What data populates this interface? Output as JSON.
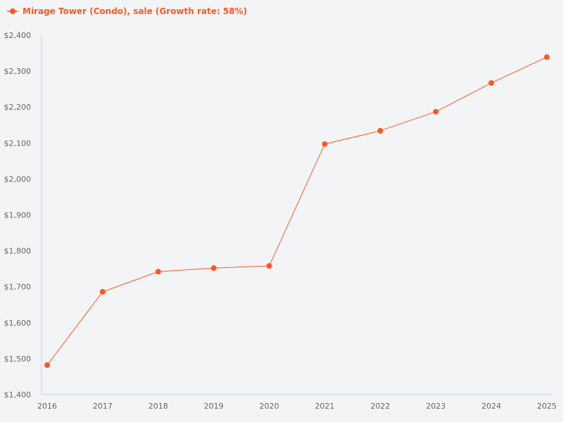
{
  "chart_data": {
    "type": "line",
    "title": "",
    "xlabel": "",
    "ylabel": "",
    "x": [
      "2016",
      "2017",
      "2018",
      "2019",
      "2020",
      "2021",
      "2022",
      "2023",
      "2024",
      "2025"
    ],
    "series": [
      {
        "name": "Mirage Tower (Condo), sale (Growth rate: 58%)",
        "values": [
          1482,
          1686,
          1742,
          1752,
          1758,
          2097,
          2134,
          2187,
          2267,
          2339
        ]
      }
    ],
    "ylim": [
      1400,
      2400
    ],
    "yticks": [
      1400,
      1500,
      1600,
      1700,
      1800,
      1900,
      2000,
      2100,
      2200,
      2300,
      2400
    ],
    "ytick_labels": [
      "$1,400",
      "$1,500",
      "$1,600",
      "$1,700",
      "$1,800",
      "$1,900",
      "$2,000",
      "$2,100",
      "$2,200",
      "$2,300",
      "$2,400"
    ],
    "grid": false,
    "legend": "top-left",
    "colors": {
      "series": "#ff5722",
      "axis": "#c8d3e0",
      "tick_text": "#666666"
    }
  }
}
